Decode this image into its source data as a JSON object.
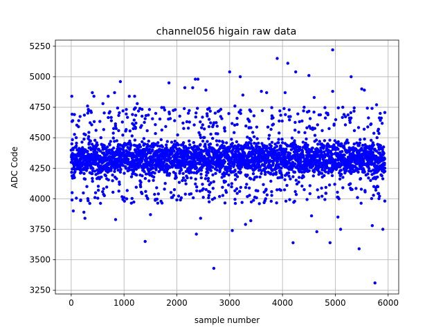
{
  "chart_data": {
    "type": "scatter",
    "title": "channel056 higain raw data",
    "xlabel": "sample number",
    "ylabel": "ADC Code",
    "xlim": [
      -300,
      6200
    ],
    "ylim": [
      3220,
      5300
    ],
    "xticks": [
      0,
      1000,
      2000,
      3000,
      4000,
      5000,
      6000
    ],
    "yticks": [
      3250,
      3500,
      3750,
      4000,
      4250,
      4500,
      4750,
      5000,
      5250
    ],
    "grid": true,
    "marker_color": "#0000ff",
    "n_samples": 5940,
    "band": {
      "center": 4330,
      "spread": 130,
      "min": 4160,
      "max": 4530
    },
    "outliers": [
      {
        "x": 10,
        "y": 4840
      },
      {
        "x": 15,
        "y": 3990
      },
      {
        "x": 40,
        "y": 3900
      },
      {
        "x": 60,
        "y": 4690
      },
      {
        "x": 180,
        "y": 3990
      },
      {
        "x": 240,
        "y": 3890
      },
      {
        "x": 260,
        "y": 3840
      },
      {
        "x": 310,
        "y": 4760
      },
      {
        "x": 400,
        "y": 4870
      },
      {
        "x": 430,
        "y": 4840
      },
      {
        "x": 450,
        "y": 4010
      },
      {
        "x": 600,
        "y": 4780
      },
      {
        "x": 700,
        "y": 4840
      },
      {
        "x": 760,
        "y": 4640
      },
      {
        "x": 820,
        "y": 4870
      },
      {
        "x": 840,
        "y": 3830
      },
      {
        "x": 930,
        "y": 4960
      },
      {
        "x": 980,
        "y": 4720
      },
      {
        "x": 1000,
        "y": 4010
      },
      {
        "x": 1050,
        "y": 4000
      },
      {
        "x": 1100,
        "y": 4840
      },
      {
        "x": 1160,
        "y": 4690
      },
      {
        "x": 1200,
        "y": 4840
      },
      {
        "x": 1250,
        "y": 4780
      },
      {
        "x": 1300,
        "y": 4740
      },
      {
        "x": 1400,
        "y": 3650
      },
      {
        "x": 1450,
        "y": 4000
      },
      {
        "x": 1500,
        "y": 3870
      },
      {
        "x": 1600,
        "y": 4700
      },
      {
        "x": 1700,
        "y": 3980
      },
      {
        "x": 1850,
        "y": 4950
      },
      {
        "x": 1900,
        "y": 4010
      },
      {
        "x": 2000,
        "y": 3990
      },
      {
        "x": 2150,
        "y": 4910
      },
      {
        "x": 2300,
        "y": 4910
      },
      {
        "x": 2350,
        "y": 4980
      },
      {
        "x": 2370,
        "y": 3710
      },
      {
        "x": 2400,
        "y": 4980
      },
      {
        "x": 2450,
        "y": 3840
      },
      {
        "x": 2550,
        "y": 4890
      },
      {
        "x": 2600,
        "y": 4060
      },
      {
        "x": 2700,
        "y": 3430
      },
      {
        "x": 2800,
        "y": 4720
      },
      {
        "x": 3000,
        "y": 5040
      },
      {
        "x": 3050,
        "y": 3740
      },
      {
        "x": 3100,
        "y": 4760
      },
      {
        "x": 3200,
        "y": 5000
      },
      {
        "x": 3250,
        "y": 4850
      },
      {
        "x": 3300,
        "y": 3790
      },
      {
        "x": 3400,
        "y": 3820
      },
      {
        "x": 3600,
        "y": 4880
      },
      {
        "x": 3700,
        "y": 4870
      },
      {
        "x": 3800,
        "y": 4680
      },
      {
        "x": 3900,
        "y": 5150
      },
      {
        "x": 3950,
        "y": 4720
      },
      {
        "x": 4050,
        "y": 4870
      },
      {
        "x": 4100,
        "y": 5110
      },
      {
        "x": 4200,
        "y": 3640
      },
      {
        "x": 4250,
        "y": 5040
      },
      {
        "x": 4400,
        "y": 4720
      },
      {
        "x": 4500,
        "y": 5010
      },
      {
        "x": 4550,
        "y": 3860
      },
      {
        "x": 4600,
        "y": 4830
      },
      {
        "x": 4650,
        "y": 3730
      },
      {
        "x": 4900,
        "y": 3640
      },
      {
        "x": 4950,
        "y": 5220
      },
      {
        "x": 4950,
        "y": 4880
      },
      {
        "x": 5050,
        "y": 3850
      },
      {
        "x": 5100,
        "y": 3750
      },
      {
        "x": 5300,
        "y": 5000
      },
      {
        "x": 5450,
        "y": 3590
      },
      {
        "x": 5500,
        "y": 4900
      },
      {
        "x": 5550,
        "y": 4890
      },
      {
        "x": 5700,
        "y": 3780
      },
      {
        "x": 5750,
        "y": 3310
      },
      {
        "x": 5780,
        "y": 4770
      },
      {
        "x": 5850,
        "y": 4700
      },
      {
        "x": 5900,
        "y": 3750
      }
    ]
  }
}
